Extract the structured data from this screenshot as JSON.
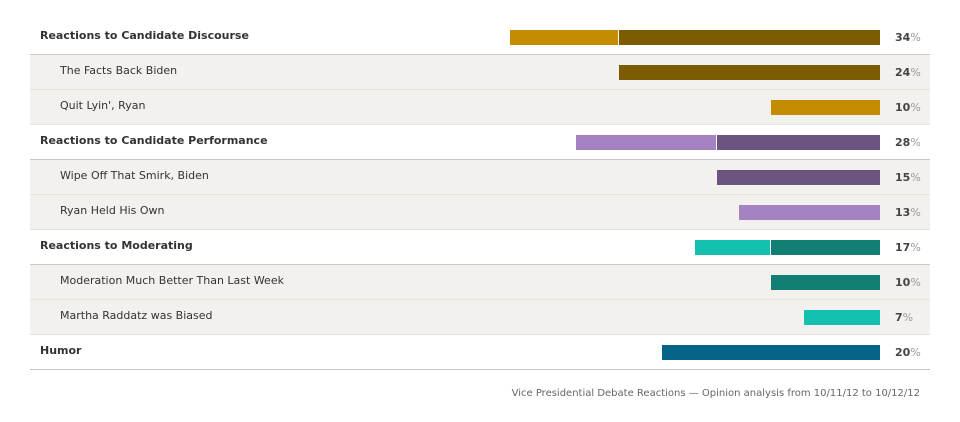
{
  "chart_data": {
    "type": "bar",
    "orientation": "horizontal",
    "value_unit": "%",
    "caption": "Vice Presidential Debate Reactions — Opinion analysis from 10/11/12 to 10/12/12",
    "groups": [
      {
        "label": "Reactions to Candidate Discourse",
        "value": 34,
        "color_dark": "#7d5c00",
        "color_light": "#c48c00",
        "items": [
          {
            "label": "The Facts Back Biden",
            "value": 24,
            "color": "#7d5c00"
          },
          {
            "label": "Quit Lyin', Ryan",
            "value": 10,
            "color": "#c48c00"
          }
        ]
      },
      {
        "label": "Reactions to Candidate Performance",
        "value": 28,
        "color_dark": "#6b5580",
        "color_light": "#a583c2",
        "items": [
          {
            "label": "Wipe Off That Smirk, Biden",
            "value": 15,
            "color": "#6b5580"
          },
          {
            "label": "Ryan Held His Own",
            "value": 13,
            "color": "#a583c2"
          }
        ]
      },
      {
        "label": "Reactions to Moderating",
        "value": 17,
        "color_dark": "#137f74",
        "color_light": "#14c0b0",
        "items": [
          {
            "label": "Moderation Much Better Than Last Week",
            "value": 10,
            "color": "#137f74"
          },
          {
            "label": "Martha Raddatz was Biased",
            "value": 7,
            "color": "#14c0b0"
          }
        ]
      },
      {
        "label": "Humor",
        "value": 20,
        "color_dark": "#05638a",
        "items": []
      }
    ]
  }
}
